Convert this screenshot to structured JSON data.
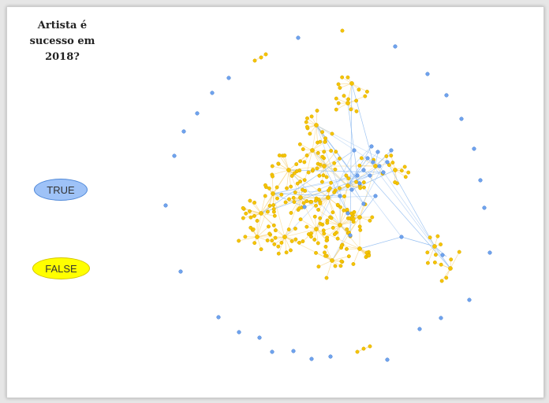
{
  "title": "Artista é sucesso em 2018?",
  "legend": {
    "true_label": "TRUE",
    "false_label": "FALSE"
  },
  "colors": {
    "true_node": "#6fa3ee",
    "true_edge": "#8ab8f0",
    "false_node": "#f5c400",
    "false_edge": "#f7d27a",
    "background": "#ffffff"
  }
}
